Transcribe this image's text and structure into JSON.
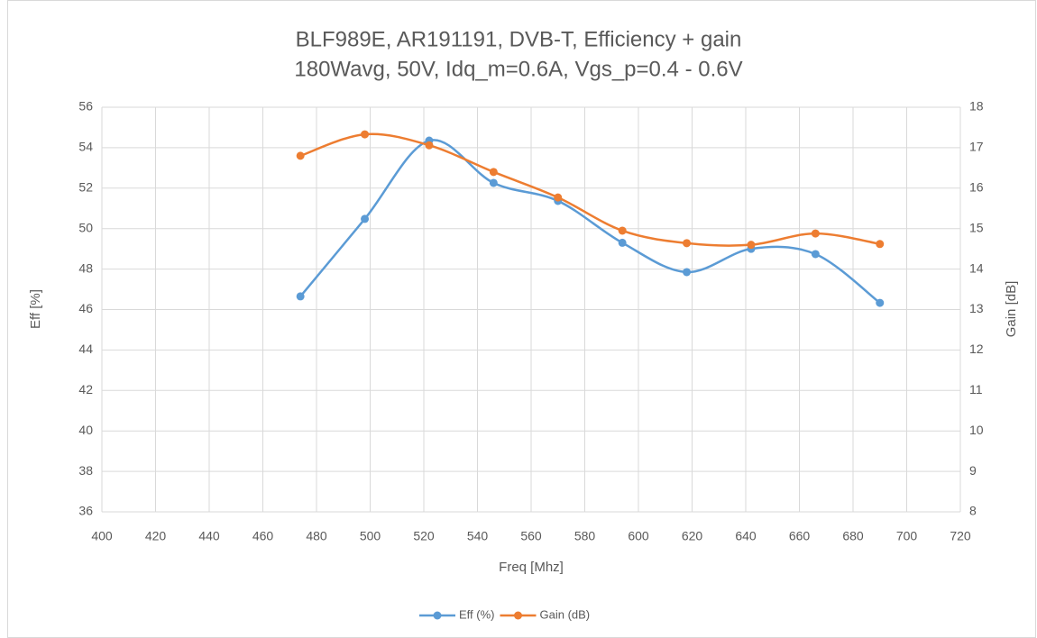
{
  "chart_data": {
    "type": "line",
    "title": "BLF989E, AR191191, DVB-T, Efficiency + gain",
    "subtitle": "180Wavg, 50V, Idq_m=0.6A, Vgs_p=0.4 - 0.6V",
    "x_label": "Freq [Mhz]",
    "y_label": "Eff [%]",
    "y2_label": "Gain [dB]",
    "x": [
      474,
      498,
      522,
      546,
      570,
      594,
      618,
      642,
      666,
      690
    ],
    "series": [
      {
        "name": "Eff (%)",
        "color": "#5b9bd5",
        "values": [
          46.65,
          50.48,
          54.35,
          52.26,
          51.37,
          49.3,
          47.85,
          49.0,
          48.74,
          46.33
        ]
      },
      {
        "name": "Gain (dB)",
        "color": "#ed7d31",
        "axis": "y2",
        "values": [
          16.8,
          17.33,
          17.06,
          16.4,
          15.77,
          14.95,
          14.64,
          14.6,
          14.88,
          14.62
        ]
      }
    ],
    "xlim": [
      400,
      720
    ],
    "xticks": [
      400,
      420,
      440,
      460,
      480,
      500,
      520,
      540,
      560,
      580,
      600,
      620,
      640,
      660,
      680,
      700,
      720
    ],
    "ylim": [
      36,
      56
    ],
    "yticks": [
      36,
      38,
      40,
      42,
      44,
      46,
      48,
      50,
      52,
      54,
      56
    ],
    "y2lim": [
      8,
      18
    ],
    "y2ticks": [
      8,
      9,
      10,
      11,
      12,
      13,
      14,
      15,
      16,
      17,
      18
    ],
    "grid": true,
    "smooth": true,
    "legend": "bottom"
  }
}
